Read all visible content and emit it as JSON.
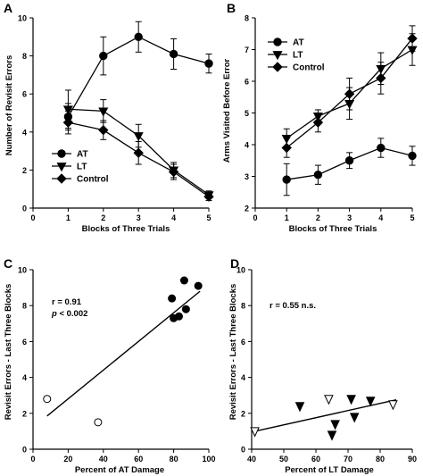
{
  "chart_data": [
    {
      "panel": "A",
      "type": "line",
      "xlabel": "Blocks of Three Trials",
      "ylabel": "Number of Revisit Errors",
      "xlim": [
        0,
        5
      ],
      "ylim": [
        0,
        10
      ],
      "xticks": [
        0,
        1,
        2,
        3,
        4,
        5
      ],
      "yticks": [
        0,
        2,
        4,
        6,
        8,
        10
      ],
      "legend": "lower-left",
      "x": [
        1,
        2,
        3,
        4,
        5
      ],
      "series": [
        {
          "name": "AT",
          "marker": "circle",
          "values": [
            4.8,
            8.0,
            9.0,
            8.1,
            7.6
          ],
          "err": [
            0.7,
            1.0,
            0.8,
            0.8,
            0.5
          ]
        },
        {
          "name": "LT",
          "marker": "triangle-down",
          "values": [
            5.2,
            5.1,
            3.8,
            2.0,
            0.7
          ],
          "err": [
            1.0,
            0.6,
            0.6,
            0.4,
            0.2
          ]
        },
        {
          "name": "Control",
          "marker": "diamond",
          "values": [
            4.5,
            4.1,
            2.9,
            1.9,
            0.6
          ],
          "err": [
            0.6,
            0.5,
            0.6,
            0.4,
            0.2
          ]
        }
      ]
    },
    {
      "panel": "B",
      "type": "line",
      "xlabel": "Blocks of Three Trials",
      "ylabel": "Arms Visited Before Error",
      "xlim": [
        0,
        5
      ],
      "ylim": [
        2,
        8
      ],
      "xticks": [
        0,
        1,
        2,
        3,
        4,
        5
      ],
      "yticks": [
        2,
        3,
        4,
        5,
        6,
        7,
        8
      ],
      "legend": "top-left",
      "x": [
        1,
        2,
        3,
        4,
        5
      ],
      "series": [
        {
          "name": "AT",
          "marker": "circle",
          "values": [
            2.9,
            3.05,
            3.5,
            3.9,
            3.65
          ],
          "err": [
            0.5,
            0.3,
            0.25,
            0.3,
            0.3
          ]
        },
        {
          "name": "LT",
          "marker": "triangle-down",
          "values": [
            4.2,
            4.9,
            5.3,
            6.4,
            7.0
          ],
          "err": [
            0.3,
            0.2,
            0.5,
            0.5,
            0.5
          ]
        },
        {
          "name": "Control",
          "marker": "diamond",
          "values": [
            3.9,
            4.7,
            5.6,
            6.1,
            7.35
          ],
          "err": [
            0.3,
            0.3,
            0.5,
            0.5,
            0.4
          ]
        }
      ]
    },
    {
      "panel": "C",
      "type": "scatter",
      "xlabel": "Percent of AT Damage",
      "ylabel": "Revisit Errors - Last Three Blocks",
      "xlim": [
        0,
        100
      ],
      "ylim": [
        0,
        10
      ],
      "xticks": [
        0,
        20,
        40,
        60,
        80,
        100
      ],
      "yticks": [
        0,
        2,
        4,
        6,
        8,
        10
      ],
      "annotation": [
        "r = 0.91",
        "p < 0.002"
      ],
      "fit_line": {
        "x": [
          8,
          95
        ],
        "y": [
          1.85,
          8.8
        ]
      },
      "points": [
        {
          "x": 8,
          "y": 2.8,
          "filled": false
        },
        {
          "x": 37,
          "y": 1.5,
          "filled": false
        },
        {
          "x": 79,
          "y": 8.4,
          "filled": true
        },
        {
          "x": 80,
          "y": 7.3,
          "filled": true
        },
        {
          "x": 83,
          "y": 7.4,
          "filled": true
        },
        {
          "x": 86,
          "y": 9.4,
          "filled": true
        },
        {
          "x": 87,
          "y": 7.8,
          "filled": true
        },
        {
          "x": 94,
          "y": 9.1,
          "filled": true
        }
      ]
    },
    {
      "panel": "D",
      "type": "scatter",
      "xlabel": "Percent of LT Damage",
      "ylabel": "Revisit Errors - Last Three Blocks",
      "xlim": [
        40,
        90
      ],
      "ylim": [
        0,
        10
      ],
      "xticks": [
        40,
        50,
        60,
        70,
        80,
        90
      ],
      "yticks": [
        0,
        2,
        4,
        6,
        8,
        10
      ],
      "annotation": [
        "r = 0.55 n.s."
      ],
      "fit_line": {
        "x": [
          41,
          85
        ],
        "y": [
          1.0,
          2.75
        ]
      },
      "points": [
        {
          "x": 41,
          "y": 1.0,
          "filled": false
        },
        {
          "x": 55,
          "y": 2.4,
          "filled": true
        },
        {
          "x": 64,
          "y": 2.8,
          "filled": false
        },
        {
          "x": 65,
          "y": 0.8,
          "filled": true
        },
        {
          "x": 66,
          "y": 1.4,
          "filled": true
        },
        {
          "x": 71,
          "y": 2.8,
          "filled": true
        },
        {
          "x": 72,
          "y": 1.8,
          "filled": true
        },
        {
          "x": 77,
          "y": 2.7,
          "filled": true
        },
        {
          "x": 84,
          "y": 2.5,
          "filled": false
        }
      ]
    }
  ]
}
